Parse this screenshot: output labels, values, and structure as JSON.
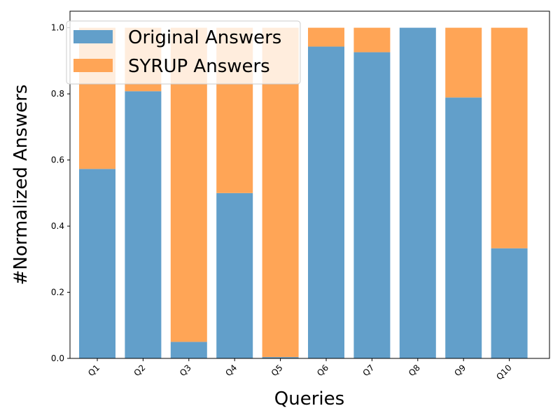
{
  "chart_data": {
    "type": "bar",
    "stacked": true,
    "categories": [
      "Q1",
      "Q2",
      "Q3",
      "Q4",
      "Q5",
      "Q6",
      "Q7",
      "Q8",
      "Q9",
      "Q10"
    ],
    "series": [
      {
        "name": "Original Answers",
        "color": "#629fca",
        "values": [
          0.573,
          0.808,
          0.05,
          0.5,
          0.004,
          0.943,
          0.926,
          1.0,
          0.789,
          0.333
        ]
      },
      {
        "name": "SYRUP Answers",
        "color": "#ffa556",
        "values": [
          0.427,
          0.192,
          0.95,
          0.5,
          0.996,
          0.057,
          0.074,
          0.0,
          0.211,
          0.667
        ]
      }
    ],
    "xlabel": "Queries",
    "ylabel": "#Normalized Answers",
    "ylim": [
      0,
      1.05
    ],
    "yticks": [
      "0.0",
      "0.2",
      "0.4",
      "0.6",
      "0.8",
      "1.0"
    ],
    "grid": false,
    "legend_position": "top-left"
  }
}
